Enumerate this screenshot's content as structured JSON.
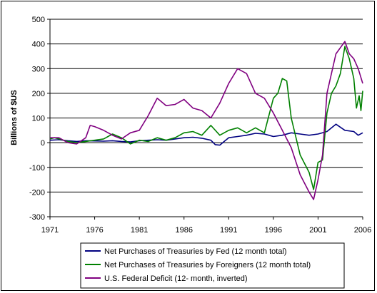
{
  "chart_data": {
    "type": "line",
    "title": "",
    "xlabel": "",
    "ylabel": "Billions of $US",
    "xlim": [
      1971,
      2006
    ],
    "ylim": [
      -300,
      500
    ],
    "x_ticks": [
      1971,
      1976,
      1981,
      1986,
      1991,
      1996,
      2001,
      2006
    ],
    "y_ticks": [
      -300,
      -200,
      -100,
      0,
      100,
      200,
      300,
      400,
      500
    ],
    "grid": "horizontal",
    "legend_position": "bottom",
    "series": [
      {
        "name": "Net Purchases of Treasuries by Fed (12 month total)",
        "color": "#000080",
        "points": [
          [
            1971.0,
            10
          ],
          [
            1972.0,
            12
          ],
          [
            1973.0,
            8
          ],
          [
            1974.0,
            5
          ],
          [
            1975.0,
            8
          ],
          [
            1976.0,
            7
          ],
          [
            1977.0,
            6
          ],
          [
            1978.0,
            8
          ],
          [
            1979.0,
            5
          ],
          [
            1980.0,
            3
          ],
          [
            1981.0,
            8
          ],
          [
            1982.0,
            10
          ],
          [
            1983.0,
            12
          ],
          [
            1984.0,
            10
          ],
          [
            1985.0,
            15
          ],
          [
            1986.0,
            20
          ],
          [
            1987.0,
            22
          ],
          [
            1988.0,
            18
          ],
          [
            1989.0,
            10
          ],
          [
            1989.5,
            -8
          ],
          [
            1990.0,
            -10
          ],
          [
            1990.5,
            5
          ],
          [
            1991.0,
            20
          ],
          [
            1992.0,
            25
          ],
          [
            1993.0,
            30
          ],
          [
            1994.0,
            38
          ],
          [
            1995.0,
            35
          ],
          [
            1996.0,
            25
          ],
          [
            1997.0,
            30
          ],
          [
            1998.0,
            40
          ],
          [
            1999.0,
            35
          ],
          [
            2000.0,
            30
          ],
          [
            2001.0,
            35
          ],
          [
            2002.0,
            45
          ],
          [
            2003.0,
            75
          ],
          [
            2004.0,
            50
          ],
          [
            2005.0,
            45
          ],
          [
            2005.5,
            30
          ],
          [
            2006.0,
            40
          ]
        ]
      },
      {
        "name": "Net Purchases of Treasuries by Foreigners (12 month total)",
        "color": "#008000",
        "points": [
          [
            1971.0,
            15
          ],
          [
            1971.5,
            20
          ],
          [
            1972.0,
            15
          ],
          [
            1973.0,
            5
          ],
          [
            1974.0,
            0
          ],
          [
            1975.0,
            5
          ],
          [
            1976.0,
            10
          ],
          [
            1977.0,
            15
          ],
          [
            1978.0,
            35
          ],
          [
            1979.0,
            20
          ],
          [
            1980.0,
            -5
          ],
          [
            1981.0,
            10
          ],
          [
            1982.0,
            5
          ],
          [
            1983.0,
            20
          ],
          [
            1984.0,
            10
          ],
          [
            1985.0,
            20
          ],
          [
            1986.0,
            40
          ],
          [
            1987.0,
            45
          ],
          [
            1988.0,
            30
          ],
          [
            1989.0,
            70
          ],
          [
            1990.0,
            30
          ],
          [
            1991.0,
            50
          ],
          [
            1992.0,
            60
          ],
          [
            1993.0,
            40
          ],
          [
            1994.0,
            60
          ],
          [
            1995.0,
            40
          ],
          [
            1996.0,
            180
          ],
          [
            1996.5,
            200
          ],
          [
            1997.0,
            260
          ],
          [
            1997.5,
            250
          ],
          [
            1998.0,
            100
          ],
          [
            1999.0,
            -50
          ],
          [
            2000.0,
            -120
          ],
          [
            2000.5,
            -190
          ],
          [
            2001.0,
            -80
          ],
          [
            2001.5,
            -70
          ],
          [
            2002.0,
            120
          ],
          [
            2002.5,
            200
          ],
          [
            2003.0,
            230
          ],
          [
            2003.5,
            280
          ],
          [
            2004.0,
            390
          ],
          [
            2004.5,
            340
          ],
          [
            2005.0,
            260
          ],
          [
            2005.3,
            140
          ],
          [
            2005.6,
            190
          ],
          [
            2005.8,
            130
          ],
          [
            2006.0,
            210
          ]
        ]
      },
      {
        "name": "U.S. Federal Deficit (12- month, inverted)",
        "color": "#800080",
        "points": [
          [
            1971.0,
            20
          ],
          [
            1972.0,
            20
          ],
          [
            1972.5,
            10
          ],
          [
            1973.0,
            0
          ],
          [
            1974.0,
            -5
          ],
          [
            1975.0,
            20
          ],
          [
            1975.5,
            70
          ],
          [
            1976.0,
            65
          ],
          [
            1977.0,
            50
          ],
          [
            1978.0,
            30
          ],
          [
            1979.0,
            15
          ],
          [
            1980.0,
            40
          ],
          [
            1981.0,
            50
          ],
          [
            1982.0,
            110
          ],
          [
            1983.0,
            180
          ],
          [
            1984.0,
            150
          ],
          [
            1985.0,
            155
          ],
          [
            1986.0,
            175
          ],
          [
            1987.0,
            140
          ],
          [
            1988.0,
            130
          ],
          [
            1989.0,
            100
          ],
          [
            1990.0,
            160
          ],
          [
            1991.0,
            240
          ],
          [
            1992.0,
            300
          ],
          [
            1993.0,
            280
          ],
          [
            1994.0,
            200
          ],
          [
            1995.0,
            180
          ],
          [
            1996.0,
            120
          ],
          [
            1997.0,
            50
          ],
          [
            1998.0,
            -20
          ],
          [
            1999.0,
            -130
          ],
          [
            2000.0,
            -200
          ],
          [
            2000.5,
            -230
          ],
          [
            2001.0,
            -150
          ],
          [
            2001.5,
            -50
          ],
          [
            2002.0,
            200
          ],
          [
            2003.0,
            360
          ],
          [
            2004.0,
            410
          ],
          [
            2004.5,
            360
          ],
          [
            2005.0,
            340
          ],
          [
            2005.5,
            300
          ],
          [
            2006.0,
            240
          ]
        ]
      }
    ]
  }
}
